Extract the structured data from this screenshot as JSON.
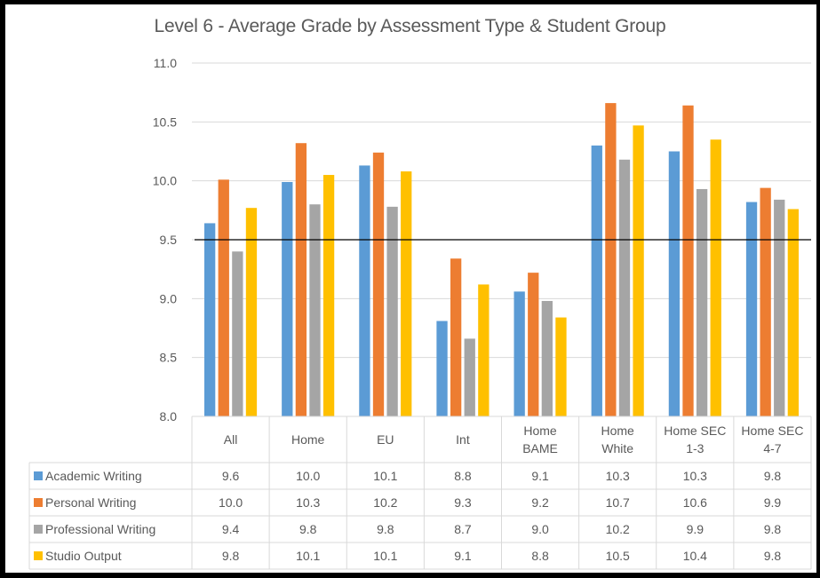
{
  "chart_data": {
    "type": "bar",
    "title": "Level 6 - Average Grade by Assessment Type & Student Group",
    "xlabel": "",
    "ylabel": "",
    "ylim": [
      8.0,
      11.0
    ],
    "yticks": [
      "8.0",
      "8.5",
      "9.0",
      "9.5",
      "10.0",
      "10.5",
      "11.0"
    ],
    "grid": true,
    "reference_line": 9.5,
    "legend_placement": "data-table-left",
    "categories": [
      [
        "All"
      ],
      [
        "Home"
      ],
      [
        "EU"
      ],
      [
        "Int"
      ],
      [
        "Home",
        "BAME"
      ],
      [
        "Home",
        "White"
      ],
      [
        "Home SEC",
        "1-3"
      ],
      [
        "Home SEC",
        "4-7"
      ]
    ],
    "series": [
      {
        "name": "Academic Writing",
        "color": "#5B9BD5",
        "values": [
          9.64,
          9.99,
          10.13,
          8.81,
          9.06,
          10.3,
          10.25,
          9.82
        ],
        "table_values": [
          "9.6",
          "10.0",
          "10.1",
          "8.8",
          "9.1",
          "10.3",
          "10.3",
          "9.8"
        ]
      },
      {
        "name": "Personal Writing",
        "color": "#ED7D31",
        "values": [
          10.01,
          10.32,
          10.24,
          9.34,
          9.22,
          10.66,
          10.64,
          9.94
        ],
        "table_values": [
          "10.0",
          "10.3",
          "10.2",
          "9.3",
          "9.2",
          "10.7",
          "10.6",
          "9.9"
        ]
      },
      {
        "name": "Professional Writing",
        "color": "#A5A5A5",
        "values": [
          9.4,
          9.8,
          9.78,
          8.66,
          8.98,
          10.18,
          9.93,
          9.84
        ],
        "table_values": [
          "9.4",
          "9.8",
          "9.8",
          "8.7",
          "9.0",
          "10.2",
          "9.9",
          "9.8"
        ]
      },
      {
        "name": "Studio Output",
        "color": "#FFC000",
        "values": [
          9.77,
          10.05,
          10.08,
          9.12,
          8.84,
          10.47,
          10.35,
          9.76
        ],
        "table_values": [
          "9.8",
          "10.1",
          "10.1",
          "9.1",
          "8.8",
          "10.5",
          "10.4",
          "9.8"
        ]
      }
    ]
  }
}
